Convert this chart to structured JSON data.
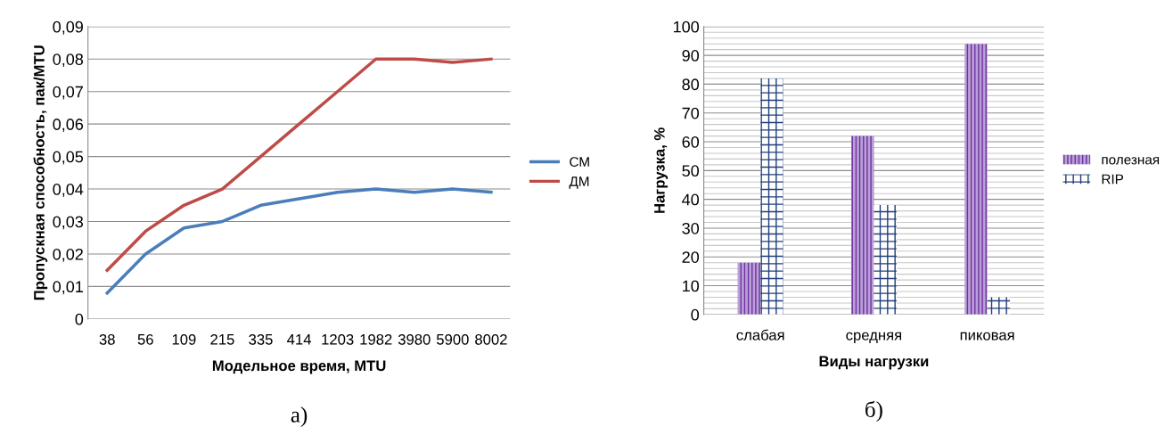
{
  "chart_data": [
    {
      "type": "line",
      "xlabel": "Модельное время, MTU",
      "ylabel": "Пропускная способность, пак/MTU",
      "categories": [
        "38",
        "56",
        "109",
        "215",
        "335",
        "414",
        "1203",
        "1982",
        "3980",
        "5900",
        "8002"
      ],
      "series": [
        {
          "name": "СМ",
          "color": "#4a7ebb",
          "values": [
            0.008,
            0.02,
            0.028,
            0.03,
            0.035,
            0.037,
            0.039,
            0.04,
            0.039,
            0.04,
            0.039
          ]
        },
        {
          "name": "ДМ",
          "color": "#be4b48",
          "values": [
            0.015,
            0.027,
            0.035,
            0.04,
            0.05,
            0.06,
            0.07,
            0.08,
            0.08,
            0.079,
            0.08
          ]
        }
      ],
      "ylim": [
        0,
        0.09
      ],
      "yticks": [
        {
          "value": 0,
          "label": "0"
        },
        {
          "value": 0.01,
          "label": "0,01"
        },
        {
          "value": 0.02,
          "label": "0,02"
        },
        {
          "value": 0.03,
          "label": "0,03"
        },
        {
          "value": 0.04,
          "label": "0,04"
        },
        {
          "value": 0.05,
          "label": "0,05"
        },
        {
          "value": 0.06,
          "label": "0,06"
        },
        {
          "value": 0.07,
          "label": "0,07"
        },
        {
          "value": 0.08,
          "label": "0,08"
        },
        {
          "value": 0.09,
          "label": "0,09"
        }
      ],
      "grid": "y",
      "legend": "right",
      "marker": "none",
      "line_style": "solid",
      "annotations": [
        "а)"
      ]
    },
    {
      "type": "bar",
      "xlabel": "Виды нагрузки",
      "ylabel": "Нагрузка, %",
      "categories": [
        "слабая",
        "средняя",
        "пиковая"
      ],
      "series": [
        {
          "name": "полезная",
          "color": "#7030a0",
          "values": [
            18,
            62,
            94
          ]
        },
        {
          "name": "RIP",
          "color": "#1f3d7a",
          "values": [
            82,
            38,
            6
          ]
        }
      ],
      "ylim": [
        0,
        100
      ],
      "yticks": [
        0,
        {
          "value": 2,
          "label": null
        },
        {
          "value": 4,
          "label": null
        },
        {
          "value": 6,
          "label": null
        },
        {
          "value": 8,
          "label": null
        },
        10,
        {
          "value": 12,
          "label": null
        },
        {
          "value": 14,
          "label": null
        },
        {
          "value": 16,
          "label": null
        },
        {
          "value": 18,
          "label": null
        },
        20,
        {
          "value": 22,
          "label": null
        },
        {
          "value": 24,
          "label": null
        },
        {
          "value": 26,
          "label": null
        },
        {
          "value": 28,
          "label": null
        },
        30,
        {
          "value": 32,
          "label": null
        },
        {
          "value": 34,
          "label": null
        },
        {
          "value": 36,
          "label": null
        },
        {
          "value": 38,
          "label": null
        },
        40,
        {
          "value": 42,
          "label": null
        },
        {
          "value": 44,
          "label": null
        },
        {
          "value": 46,
          "label": null
        },
        {
          "value": 48,
          "label": null
        },
        50,
        {
          "value": 52,
          "label": null
        },
        {
          "value": 54,
          "label": null
        },
        {
          "value": 56,
          "label": null
        },
        {
          "value": 58,
          "label": null
        },
        60,
        {
          "value": 62,
          "label": null
        },
        {
          "value": 64,
          "label": null
        },
        {
          "value": 66,
          "label": null
        },
        {
          "value": 68,
          "label": null
        },
        70,
        {
          "value": 72,
          "label": null
        },
        {
          "value": 74,
          "label": null
        },
        {
          "value": 76,
          "label": null
        },
        {
          "value": 78,
          "label": null
        },
        80,
        {
          "value": 82,
          "label": null
        },
        {
          "value": 84,
          "label": null
        },
        {
          "value": 86,
          "label": null
        },
        {
          "value": 88,
          "label": null
        },
        90,
        {
          "value": 92,
          "label": null
        },
        {
          "value": 94,
          "label": null
        },
        {
          "value": 96,
          "label": null
        },
        {
          "value": 98,
          "label": null
        },
        100
      ],
      "grid": "y",
      "legend": "right",
      "annotations": [
        "б)"
      ]
    }
  ]
}
